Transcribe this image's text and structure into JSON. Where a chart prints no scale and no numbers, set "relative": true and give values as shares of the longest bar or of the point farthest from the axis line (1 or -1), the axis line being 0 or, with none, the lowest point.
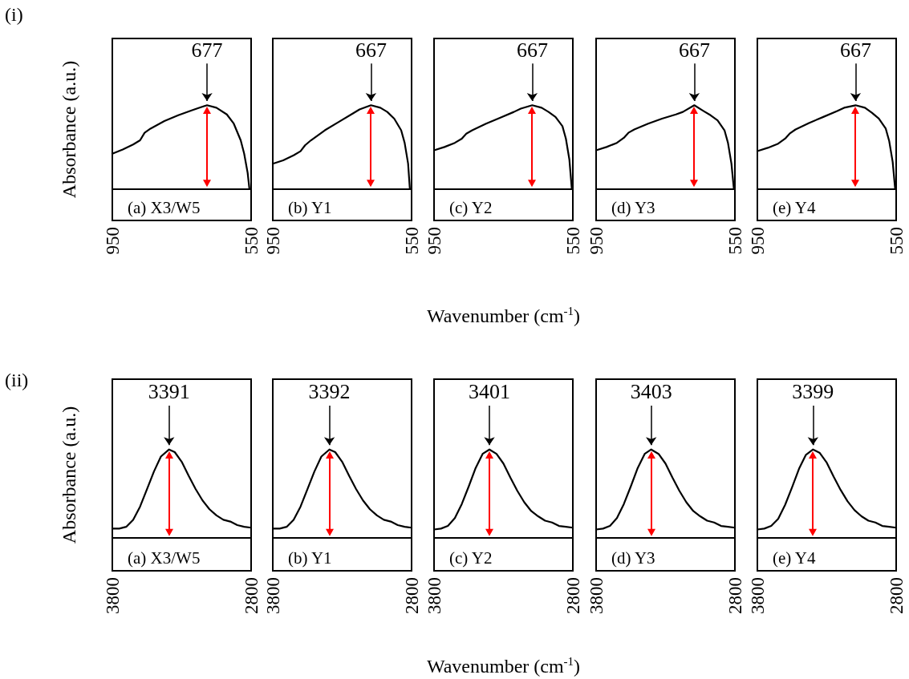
{
  "chart_data": [
    {
      "type": "line",
      "title": "(a) X3/W5",
      "ylabel": "Absorbance (a.u.)",
      "annotations": [
        "(i)",
        {
          "text": "677",
          "x": 677,
          "y": 1
        }
      ],
      "relative": true,
      "marker": "none",
      "tick_labels": "x",
      "xlim": [
        950,
        550
      ],
      "xticks": [
        950,
        550
      ],
      "x": [
        950,
        920,
        890,
        870,
        857,
        840,
        800,
        760,
        720,
        700,
        677,
        650,
        620,
        600,
        580,
        570,
        560,
        555
      ],
      "series": [
        {
          "color": "#000000",
          "values": [
            0.42,
            0.47,
            0.53,
            0.58,
            0.67,
            0.72,
            0.81,
            0.88,
            0.94,
            0.97,
            1,
            0.97,
            0.89,
            0.78,
            0.58,
            0.42,
            0.19,
            0
          ]
        }
      ]
    },
    {
      "type": "line",
      "title": "(b) Y1",
      "annotations": [
        {
          "text": "667",
          "x": 667,
          "y": 1
        }
      ],
      "relative": true,
      "marker": "none",
      "tick_labels": "x",
      "xlim": [
        950,
        550
      ],
      "xticks": [
        950,
        550
      ],
      "x": [
        950,
        920,
        890,
        870,
        857,
        840,
        800,
        760,
        720,
        700,
        667,
        640,
        620,
        600,
        580,
        570,
        560,
        555
      ],
      "series": [
        {
          "color": "#000000",
          "values": [
            0.3,
            0.34,
            0.4,
            0.45,
            0.52,
            0.58,
            0.7,
            0.8,
            0.9,
            0.95,
            1,
            0.97,
            0.92,
            0.84,
            0.7,
            0.55,
            0.3,
            0
          ]
        }
      ]
    },
    {
      "type": "line",
      "title": "(c) Y2",
      "xlabel": "Wavenumber (cm$^{-1}$)",
      "annotations": [
        {
          "text": "667",
          "x": 667,
          "y": 1
        }
      ],
      "relative": true,
      "marker": "none",
      "tick_labels": "x",
      "xlim": [
        950,
        550
      ],
      "xticks": [
        950,
        550
      ],
      "x": [
        950,
        920,
        890,
        870,
        857,
        840,
        800,
        760,
        720,
        700,
        667,
        640,
        620,
        600,
        580,
        570,
        560,
        553
      ],
      "series": [
        {
          "color": "#000000",
          "values": [
            0.46,
            0.5,
            0.55,
            0.6,
            0.66,
            0.7,
            0.78,
            0.85,
            0.92,
            0.96,
            1,
            0.97,
            0.92,
            0.86,
            0.75,
            0.6,
            0.35,
            0
          ]
        }
      ]
    },
    {
      "type": "line",
      "title": "(d) Y3",
      "annotations": [
        {
          "text": "667",
          "x": 667,
          "y": 1
        }
      ],
      "relative": true,
      "marker": "none",
      "tick_labels": "x",
      "xlim": [
        950,
        550
      ],
      "xticks": [
        950,
        550
      ],
      "x": [
        950,
        920,
        890,
        870,
        857,
        840,
        800,
        760,
        720,
        700,
        667,
        640,
        620,
        600,
        580,
        570,
        560,
        553
      ],
      "series": [
        {
          "color": "#000000",
          "values": [
            0.46,
            0.5,
            0.55,
            0.61,
            0.67,
            0.71,
            0.78,
            0.84,
            0.89,
            0.92,
            1,
            0.93,
            0.88,
            0.82,
            0.7,
            0.55,
            0.3,
            0
          ]
        }
      ]
    },
    {
      "type": "line",
      "title": "(e) Y4",
      "annotations": [
        {
          "text": "667",
          "x": 667,
          "y": 1
        }
      ],
      "relative": true,
      "marker": "none",
      "tick_labels": "x",
      "xlim": [
        950,
        550
      ],
      "xticks": [
        950,
        550
      ],
      "x": [
        950,
        920,
        890,
        870,
        857,
        840,
        800,
        760,
        720,
        700,
        667,
        640,
        620,
        600,
        580,
        570,
        560,
        553
      ],
      "series": [
        {
          "color": "#000000",
          "values": [
            0.45,
            0.49,
            0.54,
            0.6,
            0.66,
            0.71,
            0.79,
            0.86,
            0.93,
            0.97,
            1,
            0.97,
            0.91,
            0.84,
            0.72,
            0.57,
            0.32,
            0
          ]
        }
      ]
    },
    {
      "type": "line",
      "title": "(a) X3/W5",
      "ylabel": "Absorbance (a.u.)",
      "annotations": [
        "(ii)",
        {
          "text": "3391",
          "x": 3391,
          "y": 1
        }
      ],
      "relative": true,
      "marker": "none",
      "tick_labels": "x",
      "xlim": [
        3800,
        2800
      ],
      "xticks": [
        3800,
        2800
      ],
      "x": [
        3800,
        3750,
        3700,
        3650,
        3600,
        3550,
        3500,
        3450,
        3391,
        3350,
        3300,
        3250,
        3200,
        3150,
        3100,
        3050,
        3000,
        2950,
        2900,
        2850,
        2800
      ],
      "series": [
        {
          "color": "#000000",
          "values": [
            0.1,
            0.1,
            0.12,
            0.2,
            0.35,
            0.55,
            0.75,
            0.92,
            1,
            0.97,
            0.86,
            0.7,
            0.55,
            0.42,
            0.32,
            0.25,
            0.2,
            0.18,
            0.14,
            0.12,
            0.11
          ]
        }
      ]
    },
    {
      "type": "line",
      "title": "(b) Y1",
      "annotations": [
        {
          "text": "3392",
          "x": 3392,
          "y": 1
        }
      ],
      "relative": true,
      "marker": "none",
      "tick_labels": "x",
      "xlim": [
        3800,
        2800
      ],
      "xticks": [
        3800,
        2800
      ],
      "x": [
        3800,
        3750,
        3700,
        3650,
        3600,
        3550,
        3500,
        3450,
        3392,
        3350,
        3300,
        3250,
        3200,
        3150,
        3100,
        3050,
        3000,
        2950,
        2900,
        2850,
        2800
      ],
      "series": [
        {
          "color": "#000000",
          "values": [
            0.1,
            0.1,
            0.12,
            0.2,
            0.35,
            0.55,
            0.75,
            0.92,
            1,
            0.97,
            0.86,
            0.7,
            0.55,
            0.42,
            0.32,
            0.25,
            0.2,
            0.18,
            0.14,
            0.12,
            0.11
          ]
        }
      ]
    },
    {
      "type": "line",
      "title": "(c) Y2",
      "xlabel": "Wavenumber (cm$^{-1}$)",
      "annotations": [
        {
          "text": "3401",
          "x": 3401,
          "y": 1
        }
      ],
      "relative": true,
      "marker": "none",
      "tick_labels": "x",
      "xlim": [
        3800,
        2800
      ],
      "xticks": [
        3800,
        2800
      ],
      "x": [
        3800,
        3750,
        3700,
        3650,
        3600,
        3550,
        3500,
        3450,
        3401,
        3350,
        3300,
        3250,
        3200,
        3150,
        3100,
        3050,
        3000,
        2950,
        2900,
        2850,
        2800
      ],
      "series": [
        {
          "color": "#000000",
          "values": [
            0.09,
            0.1,
            0.13,
            0.22,
            0.38,
            0.58,
            0.79,
            0.95,
            1,
            0.95,
            0.84,
            0.68,
            0.53,
            0.4,
            0.3,
            0.24,
            0.19,
            0.17,
            0.13,
            0.12,
            0.11
          ]
        }
      ]
    },
    {
      "type": "line",
      "title": "(d) Y3",
      "annotations": [
        {
          "text": "3403",
          "x": 3403,
          "y": 1
        }
      ],
      "relative": true,
      "marker": "none",
      "tick_labels": "x",
      "xlim": [
        3800,
        2800
      ],
      "xticks": [
        3800,
        2800
      ],
      "x": [
        3800,
        3750,
        3700,
        3650,
        3600,
        3550,
        3500,
        3450,
        3403,
        3350,
        3300,
        3250,
        3200,
        3150,
        3100,
        3050,
        3000,
        2950,
        2900,
        2850,
        2800
      ],
      "series": [
        {
          "color": "#000000",
          "values": [
            0.09,
            0.1,
            0.13,
            0.22,
            0.38,
            0.58,
            0.79,
            0.95,
            1,
            0.95,
            0.84,
            0.68,
            0.53,
            0.4,
            0.3,
            0.24,
            0.19,
            0.17,
            0.13,
            0.12,
            0.11
          ]
        }
      ]
    },
    {
      "type": "line",
      "title": "(e) Y4",
      "annotations": [
        {
          "text": "3399",
          "x": 3399,
          "y": 1
        }
      ],
      "relative": true,
      "marker": "none",
      "tick_labels": "x",
      "xlim": [
        3800,
        2800
      ],
      "xticks": [
        3800,
        2800
      ],
      "x": [
        3800,
        3750,
        3700,
        3650,
        3600,
        3550,
        3500,
        3450,
        3399,
        3350,
        3300,
        3250,
        3200,
        3150,
        3100,
        3050,
        3000,
        2950,
        2900,
        2850,
        2800
      ],
      "series": [
        {
          "color": "#000000",
          "values": [
            0.09,
            0.1,
            0.13,
            0.21,
            0.37,
            0.57,
            0.78,
            0.94,
            1,
            0.96,
            0.85,
            0.69,
            0.54,
            0.41,
            0.31,
            0.24,
            0.19,
            0.17,
            0.13,
            0.12,
            0.11
          ]
        }
      ]
    }
  ]
}
